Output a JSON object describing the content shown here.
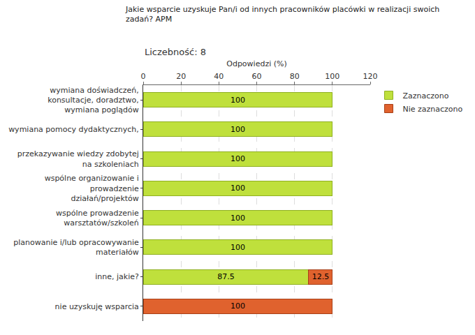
{
  "chart_data": {
    "type": "bar",
    "orientation": "horizontal",
    "stacked": true,
    "title": "Jakie wsparcie uzyskuje Pan/i od innych pracowników placówki w realizacji swoich\nzadań? APM",
    "subtitle": "Liczebność: 8",
    "x_label": "Odpowiedzi (%)",
    "categories": [
      "wymiana doświadczeń,\nkonsultacje, doradztwo,\nwymiana poglądów",
      "wymiana pomocy dydaktycznych,",
      "przekazywanie wiedzy zdobytej\nna szkoleniach",
      "wspólne organizowanie i\nprowadzenie\ndziałań/projektów",
      "wspólne prowadzenie\nwarsztatów/szkoleń",
      "planowanie i/lub opracowywanie\nmateriałów",
      "inne, jakie?",
      "nie uzyskuję wsparcia"
    ],
    "series": [
      {
        "name": "Zaznaczono",
        "color": "#bfe03c",
        "values": [
          100,
          100,
          100,
          100,
          100,
          100,
          87.5,
          null
        ]
      },
      {
        "name": "Nie zaznaczono",
        "color": "#e0622e",
        "values": [
          null,
          null,
          null,
          null,
          null,
          null,
          12.5,
          100
        ]
      }
    ],
    "xlim": [
      0,
      120
    ],
    "xticks": [
      0,
      20,
      40,
      60,
      80,
      100,
      120
    ],
    "grid": true,
    "legend": "top right",
    "data_labels": true
  }
}
